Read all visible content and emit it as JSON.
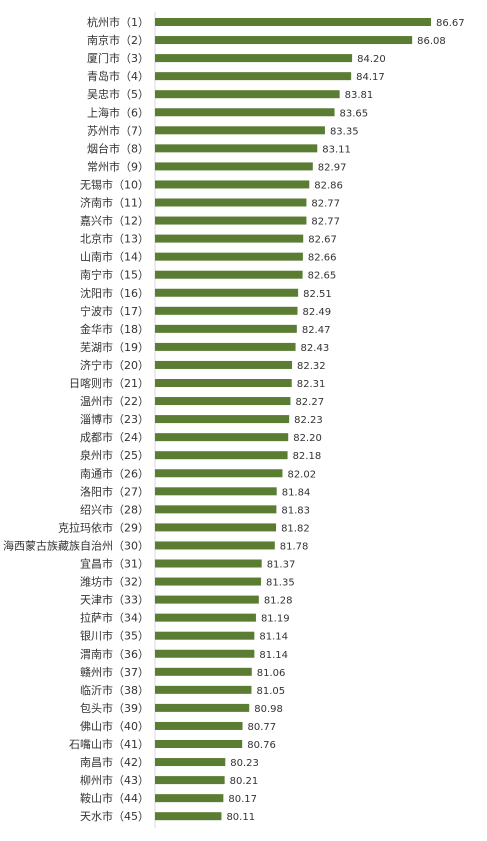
{
  "chart_data": {
    "type": "bar",
    "orientation": "horizontal",
    "bar_color": "#5a7d33",
    "grid": false,
    "legend": "none",
    "categories": [
      "杭州市（1）",
      "南京市（2）",
      "厦门市（3）",
      "青岛市（4）",
      "吴忠市（5）",
      "上海市（6）",
      "苏州市（7）",
      "烟台市（8）",
      "常州市（9）",
      "无锡市（10）",
      "济南市（11）",
      "嘉兴市（12）",
      "北京市（13）",
      "山南市（14）",
      "南宁市（15）",
      "沈阳市（16）",
      "宁波市（17）",
      "金华市（18）",
      "芜湖市（19）",
      "济宁市（20）",
      "日喀则市（21）",
      "温州市（22）",
      "淄博市（23）",
      "成都市（24）",
      "泉州市（25）",
      "南通市（26）",
      "洛阳市（27）",
      "绍兴市（28）",
      "克拉玛依市（29）",
      "海西蒙古族藏族自治州（30）",
      "宜昌市（31）",
      "潍坊市（32）",
      "天津市（33）",
      "拉萨市（34）",
      "银川市（35）",
      "渭南市（36）",
      "赣州市（37）",
      "临沂市（38）",
      "包头市（39）",
      "佛山市（40）",
      "石嘴山市（41）",
      "南昌市（42）",
      "柳州市（43）",
      "鞍山市（44）",
      "天水市（45）"
    ],
    "values": [
      86.67,
      86.08,
      84.2,
      84.17,
      83.81,
      83.65,
      83.35,
      83.11,
      82.97,
      82.86,
      82.77,
      82.77,
      82.67,
      82.66,
      82.65,
      82.51,
      82.49,
      82.47,
      82.43,
      82.32,
      82.31,
      82.27,
      82.23,
      82.2,
      82.18,
      82.02,
      81.84,
      81.83,
      81.82,
      81.78,
      81.37,
      81.35,
      81.28,
      81.19,
      81.14,
      81.14,
      81.06,
      81.05,
      80.98,
      80.77,
      80.76,
      80.23,
      80.21,
      80.17,
      80.11
    ],
    "value_labels": [
      "86.67",
      "86.08",
      "84.20",
      "84.17",
      "83.81",
      "83.65",
      "83.35",
      "83.11",
      "82.97",
      "82.86",
      "82.77",
      "82.77",
      "82.67",
      "82.66",
      "82.65",
      "82.51",
      "82.49",
      "82.47",
      "82.43",
      "82.32",
      "82.31",
      "82.27",
      "82.23",
      "82.20",
      "82.18",
      "82.02",
      "81.84",
      "81.83",
      "81.82",
      "81.78",
      "81.37",
      "81.35",
      "81.28",
      "81.19",
      "81.14",
      "81.14",
      "81.06",
      "81.05",
      "80.98",
      "80.77",
      "80.76",
      "80.23",
      "80.21",
      "80.17",
      "80.11"
    ],
    "xlim": [
      78.03,
      86.67
    ]
  }
}
